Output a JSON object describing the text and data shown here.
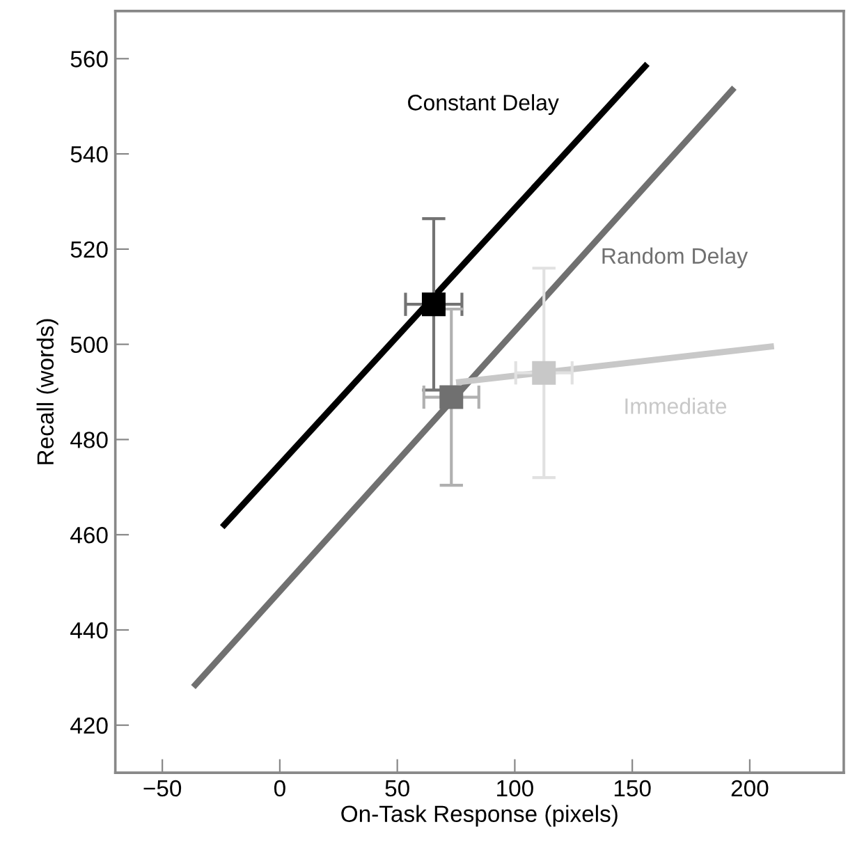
{
  "chart_data": {
    "type": "scatter",
    "xlabel": "On-Task Response (pixels)",
    "ylabel": "Recall (words)",
    "xlim": [
      -70,
      240
    ],
    "ylim": [
      410,
      570
    ],
    "xticks": [
      -50,
      0,
      50,
      100,
      150,
      200
    ],
    "yticks": [
      420,
      440,
      460,
      480,
      500,
      520,
      540,
      560
    ],
    "grid": false,
    "legend": false,
    "series": [
      {
        "name": "Constant Delay",
        "type": "line",
        "marker": "none",
        "color": "#000000",
        "x": [
          -24.5,
          156.4
        ],
        "values": [
          461.6,
          558.9
        ]
      },
      {
        "name": "Random Delay",
        "type": "line",
        "marker": "none",
        "color": "#707070",
        "x": [
          -36.8,
          193.4
        ],
        "values": [
          428,
          553.9
        ]
      },
      {
        "name": "Immediate",
        "type": "line",
        "marker": "none",
        "color": "#c8c8c8",
        "x": [
          75,
          210.3
        ],
        "values": [
          492,
          499.6
        ]
      },
      {
        "marker": "square",
        "color": "#000000",
        "x": [
          65.5
        ],
        "values": [
          508.4
        ],
        "errors": [
          18
        ],
        "xerrors": [
          12
        ]
      },
      {
        "marker": "square",
        "color": "#707070",
        "x": [
          73
        ],
        "values": [
          488.9
        ],
        "errors": [
          18.5
        ],
        "xerrors": [
          11.7
        ]
      },
      {
        "marker": "square",
        "color": "#c8c8c8",
        "x": [
          112.4
        ],
        "values": [
          494
        ],
        "errors": [
          22
        ],
        "xerrors": [
          12
        ]
      }
    ]
  }
}
